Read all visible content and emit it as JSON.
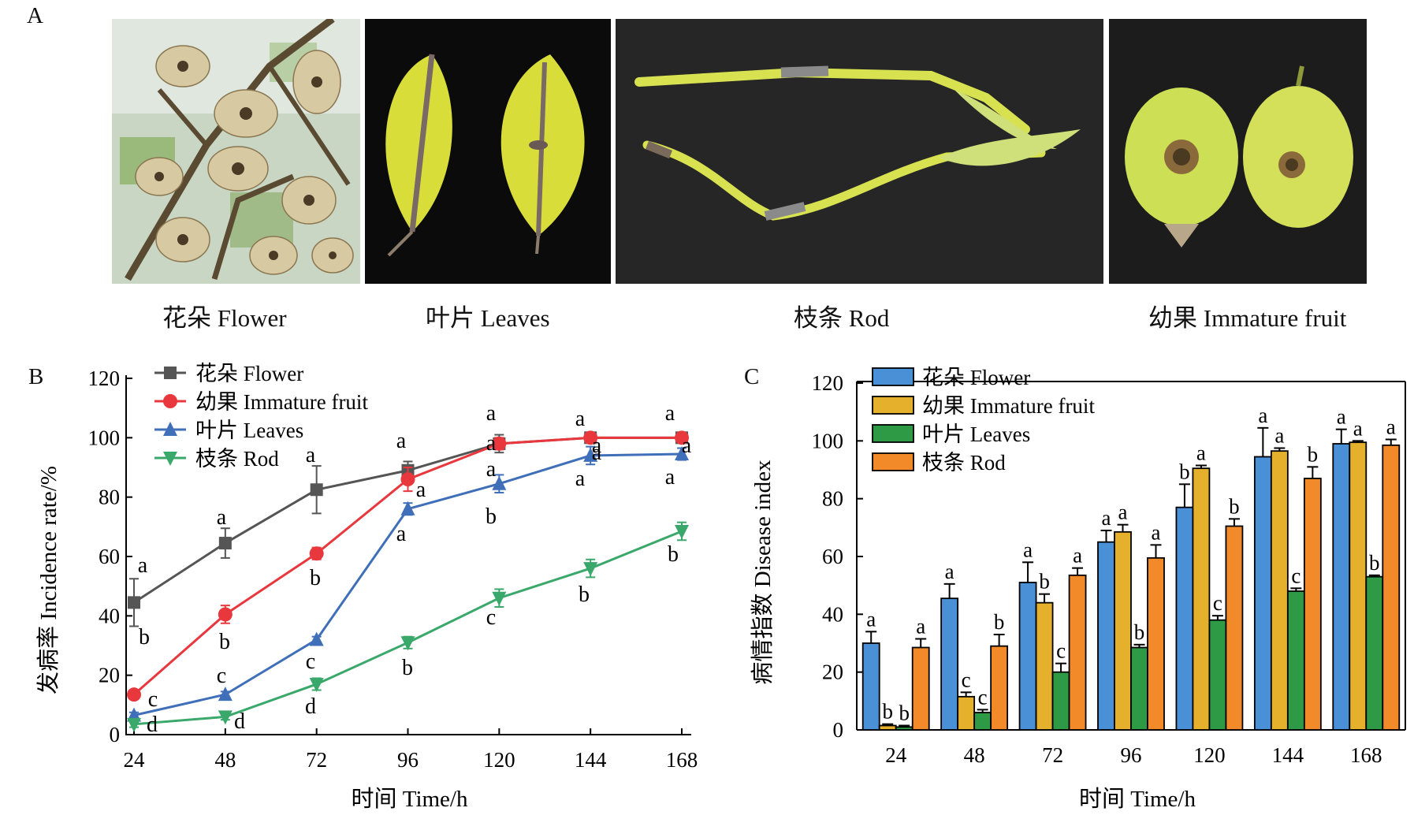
{
  "panels": {
    "a": {
      "letter": "A",
      "photos": [
        {
          "caption": "花朵 Flower",
          "subject": "flower"
        },
        {
          "caption": "叶片 Leaves",
          "subject": "leaves"
        },
        {
          "caption": "枝条 Rod",
          "subject": "rod"
        },
        {
          "caption": "幼果 Immature fruit",
          "subject": "immature-fruit"
        }
      ]
    },
    "b": {
      "letter": "B"
    },
    "c": {
      "letter": "C"
    }
  },
  "colors": {
    "flower_line": "#555555",
    "fruit_line": "#e8383d",
    "leaves_line": "#3f6fb8",
    "rod_line": "#3aa86b",
    "flower_bar": "#4a90d6",
    "fruit_bar": "#e5b02c",
    "leaves_bar": "#2f9a45",
    "rod_bar": "#f28a2a"
  },
  "chart_data": [
    {
      "type": "line",
      "xlabel": "时间 Time/h",
      "ylabel": "发病率 Incidence rate/%",
      "x": [
        24,
        48,
        72,
        96,
        120,
        144,
        168
      ],
      "ylim": [
        0,
        120
      ],
      "yticks": [
        0,
        20,
        40,
        60,
        80,
        100,
        120
      ],
      "legend_position": "top-left",
      "series": [
        {
          "name": "花朵 Flower",
          "marker": "square",
          "values": [
            44.5,
            64.5,
            82.5,
            89,
            98,
            100,
            100
          ],
          "errors": [
            8,
            5,
            8,
            3,
            3,
            0,
            0
          ],
          "letters": [
            "a",
            "a",
            "a",
            "a",
            "a",
            "a",
            "a"
          ]
        },
        {
          "name": "幼果 Immature fruit",
          "marker": "circle",
          "values": [
            13.5,
            40.5,
            61,
            86,
            98,
            100,
            100
          ],
          "errors": [
            1,
            3,
            2,
            4,
            2,
            0,
            0
          ],
          "letters": [
            "b",
            "b",
            "b",
            "a",
            "a",
            "a",
            "a"
          ]
        },
        {
          "name": "叶片 Leaves",
          "marker": "triangle-up",
          "values": [
            6.5,
            13.5,
            32,
            76,
            84.5,
            94,
            94.5
          ],
          "errors": [
            1,
            1,
            1,
            2,
            3,
            3,
            2
          ],
          "letters": [
            "c",
            "c",
            "c",
            "a",
            "b",
            "a",
            "a"
          ]
        },
        {
          "name": "枝条 Rod",
          "marker": "triangle-down",
          "values": [
            3.5,
            6,
            17,
            31,
            46,
            56,
            68.5
          ],
          "errors": [
            1,
            1,
            2,
            2,
            3,
            3,
            3
          ],
          "letters": [
            "d",
            "d",
            "d",
            "b",
            "c",
            "b",
            "b"
          ]
        }
      ]
    },
    {
      "type": "bar",
      "xlabel": "时间 Time/h",
      "ylabel": "病情指数 Disease index",
      "categories": [
        "24",
        "48",
        "72",
        "96",
        "120",
        "144",
        "168"
      ],
      "ylim": [
        0,
        120
      ],
      "yticks": [
        0,
        20,
        40,
        60,
        80,
        100,
        120
      ],
      "legend_position": "top-left",
      "series": [
        {
          "name": "花朵 Flower",
          "values": [
            30,
            45.5,
            51,
            65,
            77,
            94.5,
            99
          ],
          "errors": [
            4,
            5,
            7,
            4,
            8,
            10,
            5
          ],
          "letters": [
            "a",
            "a",
            "a",
            "a",
            "b",
            "a",
            "a"
          ]
        },
        {
          "name": "幼果 Immature fruit",
          "values": [
            1.5,
            11.5,
            44,
            68.5,
            90.5,
            96.5,
            99.5
          ],
          "errors": [
            0.5,
            1.5,
            3,
            2.5,
            1,
            1,
            0.5
          ],
          "letters": [
            "b",
            "c",
            "b",
            "a",
            "a",
            "a",
            "a"
          ]
        },
        {
          "name": "叶片 Leaves",
          "values": [
            1,
            6,
            20,
            28.5,
            38,
            48,
            53
          ],
          "errors": [
            0.5,
            1,
            3,
            1,
            1.5,
            1,
            0.5
          ],
          "letters": [
            "b",
            "c",
            "c",
            "b",
            "c",
            "c",
            "b"
          ]
        },
        {
          "name": "枝条 Rod",
          "values": [
            28.5,
            29,
            53.5,
            59.5,
            70.5,
            87,
            98.5
          ],
          "errors": [
            3,
            4,
            2.5,
            4.5,
            2.5,
            4,
            2
          ],
          "letters": [
            "a",
            "b",
            "a",
            "a",
            "b",
            "b",
            "a"
          ]
        }
      ]
    }
  ]
}
